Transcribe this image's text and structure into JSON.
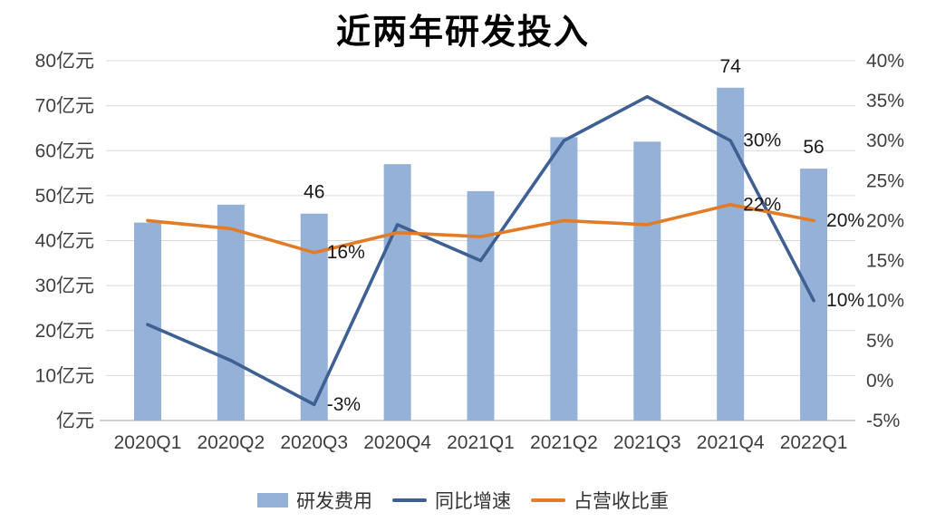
{
  "chart_data": {
    "type": "combo",
    "title": "近两年研发投入",
    "categories": [
      "2020Q1",
      "2020Q2",
      "2020Q3",
      "2020Q4",
      "2021Q1",
      "2021Q2",
      "2021Q3",
      "2021Q4",
      "2022Q1"
    ],
    "series": [
      {
        "name": "研发费用",
        "type": "bar",
        "axis": "left",
        "unit": "亿元",
        "color": "#95B1D8",
        "values": [
          44,
          48,
          46,
          57,
          51,
          63,
          62,
          74,
          56
        ]
      },
      {
        "name": "同比增速",
        "type": "line",
        "axis": "right",
        "unit": "%",
        "color": "#3E6092",
        "values": [
          7,
          2.5,
          -3,
          19.5,
          15,
          30,
          35.5,
          30,
          10
        ]
      },
      {
        "name": "占营收比重",
        "type": "line",
        "axis": "right",
        "unit": "%",
        "color": "#E27C27",
        "values": [
          20,
          19,
          16,
          18.5,
          18,
          20,
          19.5,
          22,
          20
        ]
      }
    ],
    "left_axis": {
      "min": 0,
      "max": 80,
      "step": 10,
      "labels": [
        "80亿元",
        "70亿元",
        "60亿元",
        "50亿元",
        "40亿元",
        "30亿元",
        "20亿元",
        "10亿元",
        "亿元"
      ]
    },
    "right_axis": {
      "min": -5,
      "max": 40,
      "step": 5,
      "labels": [
        "40%",
        "35%",
        "30%",
        "25%",
        "20%",
        "15%",
        "10%",
        "5%",
        "0%",
        "-5%"
      ]
    },
    "data_labels": [
      {
        "series": 0,
        "index": 2,
        "text": "46",
        "placement": "above"
      },
      {
        "series": 0,
        "index": 7,
        "text": "74",
        "placement": "above"
      },
      {
        "series": 0,
        "index": 8,
        "text": "56",
        "placement": "above"
      },
      {
        "series": 1,
        "index": 2,
        "text": "-3%",
        "placement": "right"
      },
      {
        "series": 1,
        "index": 7,
        "text": "30%",
        "placement": "right"
      },
      {
        "series": 1,
        "index": 8,
        "text": "10%",
        "placement": "right"
      },
      {
        "series": 2,
        "index": 2,
        "text": "16%",
        "placement": "right"
      },
      {
        "series": 2,
        "index": 7,
        "text": "22%",
        "placement": "right"
      },
      {
        "series": 2,
        "index": 8,
        "text": "20%",
        "placement": "right"
      }
    ],
    "grid": true,
    "legend_position": "bottom",
    "colors": {
      "grid": "#D9D9D9",
      "axis_line": "#C0C0C0",
      "axis_text": "#3F3F3F",
      "label_text": "#1A1A1A",
      "background": "#FFFFFF"
    }
  }
}
